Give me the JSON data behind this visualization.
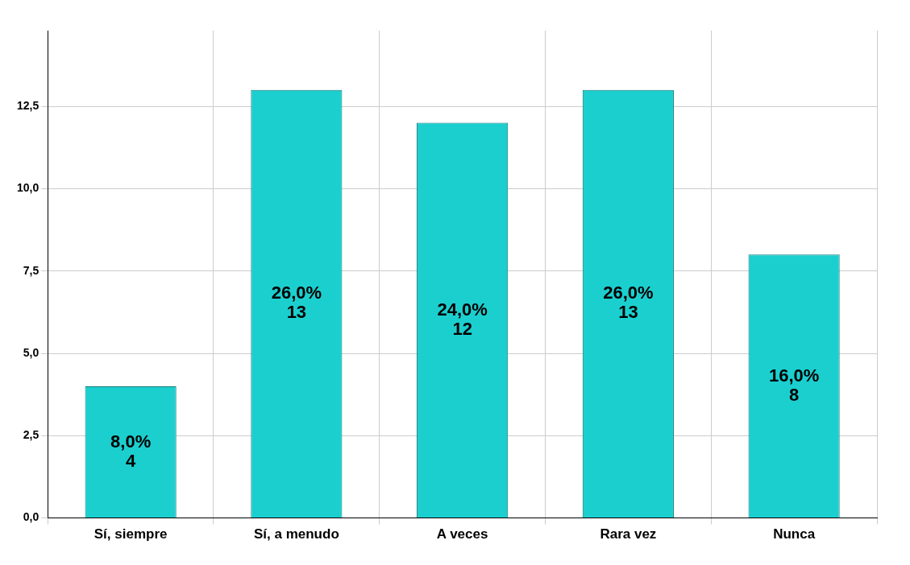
{
  "chart_data": {
    "type": "bar",
    "categories": [
      "Sí, siempre",
      "Sí, a menudo",
      "A veces",
      "Rara vez",
      "Nunca"
    ],
    "values": [
      4,
      13,
      12,
      13,
      8
    ],
    "color": "#1ccfcf",
    "value_labels": [
      "8,0%\n4",
      "26,0%\n13",
      "24,0%\n12",
      "26,0%\n13",
      "16,0%\n8"
    ],
    "ylim": [
      0,
      14.8
    ],
    "yticks": [
      {
        "value": 0,
        "label": "0,0"
      },
      {
        "value": 2.5,
        "label": "2,5"
      },
      {
        "value": 5,
        "label": "5,0"
      },
      {
        "value": 7.5,
        "label": "7,5"
      },
      {
        "value": 10,
        "label": "10,0"
      },
      {
        "value": 12.5,
        "label": "12,5"
      }
    ],
    "grid": true,
    "legend": false
  }
}
